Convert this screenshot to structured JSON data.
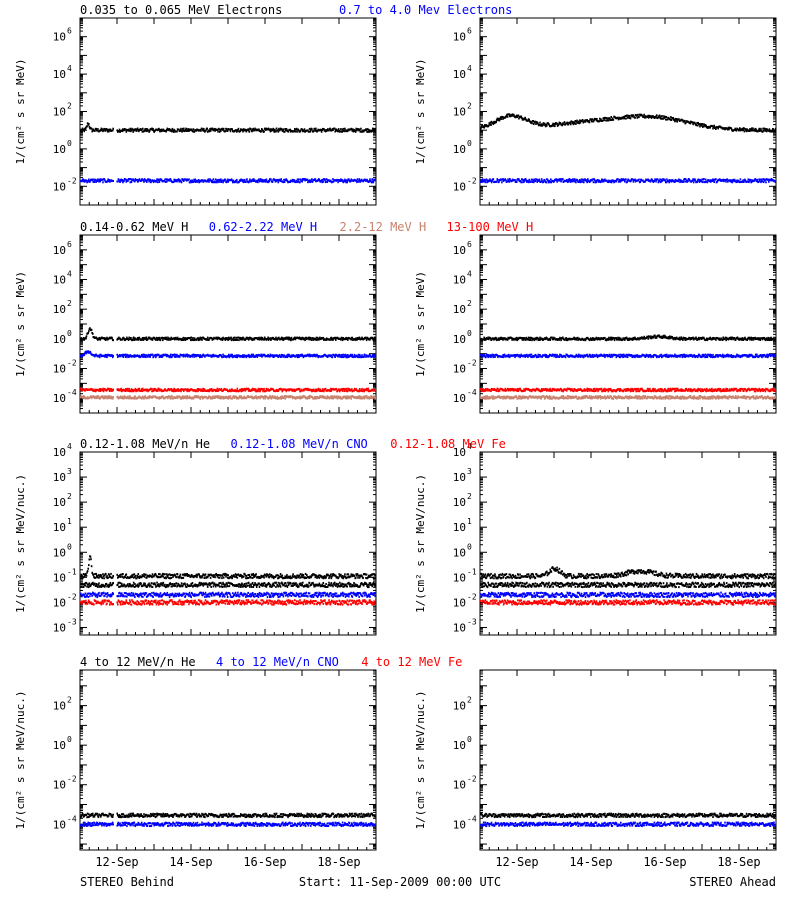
{
  "colors": {
    "black": "#000000",
    "blue": "#0000ff",
    "red": "#ff0000",
    "tan": "#c8826e"
  },
  "footer": {
    "left": "STEREO Behind",
    "center": "Start: 11-Sep-2009 00:00 UTC",
    "right": "STEREO Ahead"
  },
  "x_ticks": [
    "12-Sep",
    "14-Sep",
    "16-Sep",
    "18-Sep"
  ],
  "chart_data": [
    {
      "type": "scatter",
      "row": "electrons",
      "legend": [
        {
          "text": "0.035 to 0.065 MeV Electrons",
          "color": "#000000"
        },
        {
          "text": "0.7 to 4.0 Mev Electrons",
          "color": "#0000ff"
        }
      ],
      "ylabel": "1/(cm² s sr MeV)",
      "yscale": "log",
      "ylim_exp": [
        -3,
        7
      ],
      "ytick_exp": [
        -2,
        0,
        2,
        4,
        6
      ],
      "xlim_days": [
        0,
        8
      ],
      "series": [
        {
          "color": "#000000",
          "behind": {
            "base": 1.0,
            "bumps": [
              [
                0.2,
                0.35,
                0.05
              ]
            ]
          },
          "ahead": {
            "base": 1.0,
            "bumps": [
              [
                0.8,
                0.7,
                0.6
              ],
              [
                3.2,
                0.45,
                1.8
              ],
              [
                4.8,
                0.5,
                1.3
              ]
            ]
          }
        },
        {
          "color": "#0000ff",
          "behind": {
            "base": -1.7,
            "bumps": []
          },
          "ahead": {
            "base": -1.7,
            "bumps": []
          }
        }
      ]
    },
    {
      "type": "scatter",
      "row": "protons",
      "legend": [
        {
          "text": "0.14-0.62 MeV H",
          "color": "#000000"
        },
        {
          "text": "0.62-2.22 MeV H",
          "color": "#0000ff"
        },
        {
          "text": "2.2-12 MeV H",
          "color": "#c8826e"
        },
        {
          "text": "13-100 MeV H",
          "color": "#ff0000"
        }
      ],
      "ylabel": "1/(cm² s sr MeV)",
      "yscale": "log",
      "ylim_exp": [
        -5,
        7
      ],
      "ytick_exp": [
        -4,
        -2,
        0,
        2,
        4,
        6
      ],
      "xlim_days": [
        0,
        8
      ],
      "series": [
        {
          "color": "#000000",
          "behind": {
            "base": 0.0,
            "bumps": [
              [
                0.25,
                0.7,
                0.08
              ]
            ]
          },
          "ahead": {
            "base": 0.0,
            "bumps": [
              [
                4.8,
                0.15,
                0.4
              ]
            ]
          }
        },
        {
          "color": "#0000ff",
          "behind": {
            "base": -1.15,
            "bumps": [
              [
                0.2,
                0.3,
                0.1
              ]
            ]
          },
          "ahead": {
            "base": -1.15,
            "bumps": []
          }
        },
        {
          "color": "#c8826e",
          "behind": {
            "base": -3.95,
            "bumps": []
          },
          "ahead": {
            "base": -3.95,
            "bumps": []
          }
        },
        {
          "color": "#ff0000",
          "behind": {
            "base": -3.45,
            "bumps": []
          },
          "ahead": {
            "base": -3.45,
            "bumps": []
          }
        }
      ]
    },
    {
      "type": "scatter",
      "row": "suprathermal",
      "legend": [
        {
          "text": "0.12-1.08 MeV/n He",
          "color": "#000000"
        },
        {
          "text": "0.12-1.08 MeV/n CNO",
          "color": "#0000ff"
        },
        {
          "text": "0.12-1.08 MeV Fe",
          "color": "#ff0000"
        }
      ],
      "ylabel": "1/(cm² s sr MeV/nuc.)",
      "yscale": "log",
      "ylim_exp": [
        -3.3,
        4
      ],
      "ytick_exp": [
        -3,
        -2,
        -1,
        0,
        1,
        2,
        3,
        4
      ],
      "xlim_days": [
        0,
        8
      ],
      "series": [
        {
          "color": "#000000",
          "behind": {
            "base": -0.95,
            "bumps": [
              [
                0.25,
                0.8,
                0.05
              ]
            ]
          },
          "ahead": {
            "base": -0.95,
            "bumps": [
              [
                2.0,
                0.3,
                0.2
              ],
              [
                4.3,
                0.2,
                0.5
              ]
            ]
          }
        },
        {
          "color": "#000000",
          "behind": {
            "base": -1.3,
            "bumps": []
          },
          "ahead": {
            "base": -1.3,
            "bumps": []
          }
        },
        {
          "color": "#0000ff",
          "behind": {
            "base": -1.7,
            "bumps": []
          },
          "ahead": {
            "base": -1.7,
            "bumps": []
          }
        },
        {
          "color": "#ff0000",
          "behind": {
            "base": -2.0,
            "bumps": []
          },
          "ahead": {
            "base": -2.0,
            "bumps": []
          }
        }
      ]
    },
    {
      "type": "scatter",
      "row": "high-energy-ions",
      "legend": [
        {
          "text": "4 to 12 MeV/n He",
          "color": "#000000"
        },
        {
          "text": "4 to 12 MeV/n CNO",
          "color": "#0000ff"
        },
        {
          "text": "4 to 12 MeV Fe",
          "color": "#ff0000"
        }
      ],
      "ylabel": "1/(cm² s sr MeV/nuc.)",
      "yscale": "log",
      "ylim_exp": [
        -5.3,
        3.8
      ],
      "ytick_exp": [
        -4,
        -2,
        0,
        2
      ],
      "xlim_days": [
        0,
        8
      ],
      "series": [
        {
          "color": "#000000",
          "behind": {
            "base": -3.55,
            "bumps": []
          },
          "ahead": {
            "base": -3.55,
            "bumps": []
          }
        },
        {
          "color": "#0000ff",
          "behind": {
            "base": -4.0,
            "bumps": []
          },
          "ahead": {
            "base": -4.0,
            "bumps": []
          }
        }
      ]
    }
  ]
}
